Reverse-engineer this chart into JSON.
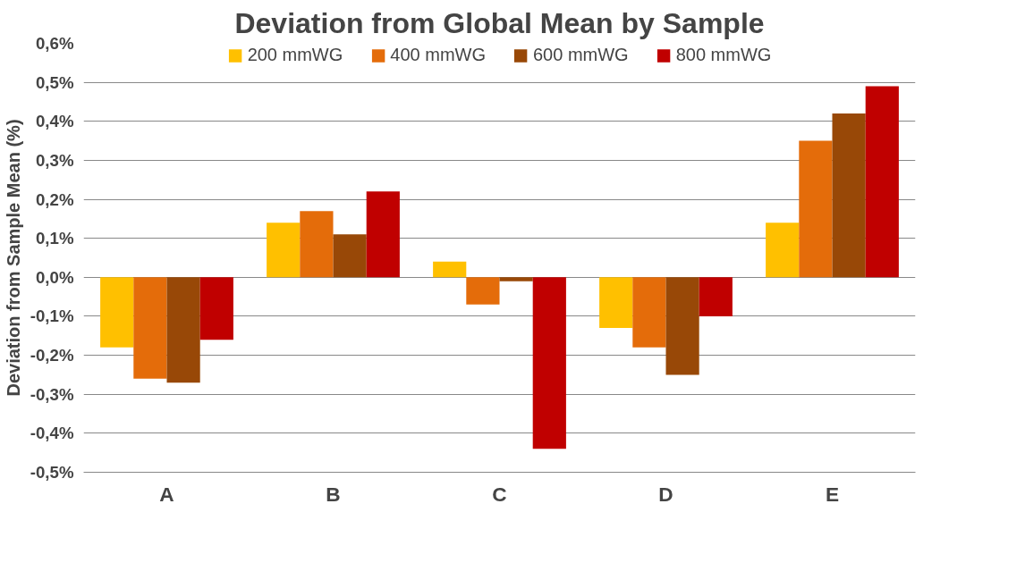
{
  "chart_data": {
    "type": "bar",
    "title": "Deviation from Global Mean by Sample",
    "ylabel": "Deviation from Sample Mean (%)",
    "categories": [
      "A",
      "B",
      "C",
      "D",
      "E"
    ],
    "series": [
      {
        "name": "200 mmWG",
        "color": "#ffc000",
        "values": [
          -0.18,
          0.14,
          0.04,
          -0.13,
          0.14
        ]
      },
      {
        "name": "400 mmWG",
        "color": "#e46c0a",
        "values": [
          -0.26,
          0.17,
          -0.07,
          -0.18,
          0.35
        ]
      },
      {
        "name": "600 mmWG",
        "color": "#984807",
        "values": [
          -0.27,
          0.11,
          -0.01,
          -0.25,
          0.42
        ]
      },
      {
        "name": "800 mmWG",
        "color": "#c00000",
        "values": [
          -0.16,
          0.22,
          -0.44,
          -0.1,
          0.49
        ]
      }
    ],
    "ylim": [
      -0.5,
      0.6
    ],
    "yticks": [
      {
        "value": -0.5,
        "label": "-0,5%"
      },
      {
        "value": -0.4,
        "label": "-0,4%"
      },
      {
        "value": -0.3,
        "label": "-0,3%"
      },
      {
        "value": -0.2,
        "label": "-0,2%"
      },
      {
        "value": -0.1,
        "label": "-0,1%"
      },
      {
        "value": 0,
        "label": "0,0%"
      },
      {
        "value": 0.1,
        "label": "0,1%"
      },
      {
        "value": 0.2,
        "label": "0,2%"
      },
      {
        "value": 0.3,
        "label": "0,3%"
      },
      {
        "value": 0.4,
        "label": "0,4%"
      },
      {
        "value": 0.5,
        "label": "0,5%"
      },
      {
        "value": 0.6,
        "label": "0,6%"
      }
    ],
    "grid": "y",
    "legend": "top"
  }
}
